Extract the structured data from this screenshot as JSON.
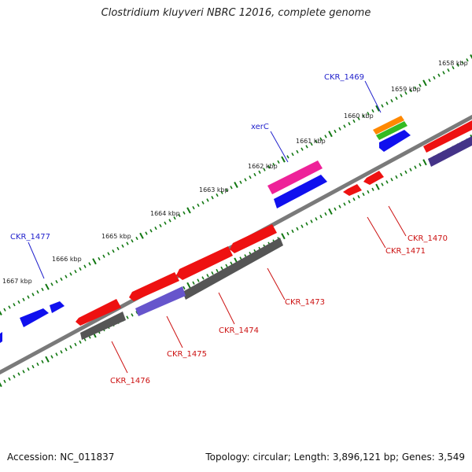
{
  "title": "Clostridium kluyveri NBRC 12016, complete genome",
  "footer": {
    "accession": "Accession: NC_011837",
    "summary": "Topology: circular; Length: 3,896,121 bp; Genes: 3,549"
  },
  "scale_labels": [
    "1658 kbp",
    "1659 kbp",
    "1660 kbp",
    "1661 kbp",
    "1662 kbp",
    "1663 kbp",
    "1664 kbp",
    "1665 kbp",
    "1666 kbp",
    "1667 kbp"
  ],
  "gene_labels": {
    "ckr_1469": "CKR_1469",
    "xerc": "xerC",
    "ckr_1477": "CKR_1477",
    "ckr_1470": "CKR_1470",
    "ckr_1471": "CKR_1471",
    "ckr_1473": "CKR_1473",
    "ckr_1474": "CKR_1474",
    "ckr_1475": "CKR_1475",
    "ckr_1476": "CKR_1476"
  },
  "colors": {
    "forward_gene": "#1010ee",
    "reverse_gene": "#ee1111",
    "backbone": "#7a7a7a",
    "pseudo_bar": "#555555",
    "purple_bar": "#6655cc",
    "magenta_gene": "#ee2299",
    "orange_gene": "#ff8800",
    "green_gene": "#33bb22",
    "tick_green": "#117711",
    "label_blue": "#2222cc",
    "label_red": "#cc1111"
  }
}
